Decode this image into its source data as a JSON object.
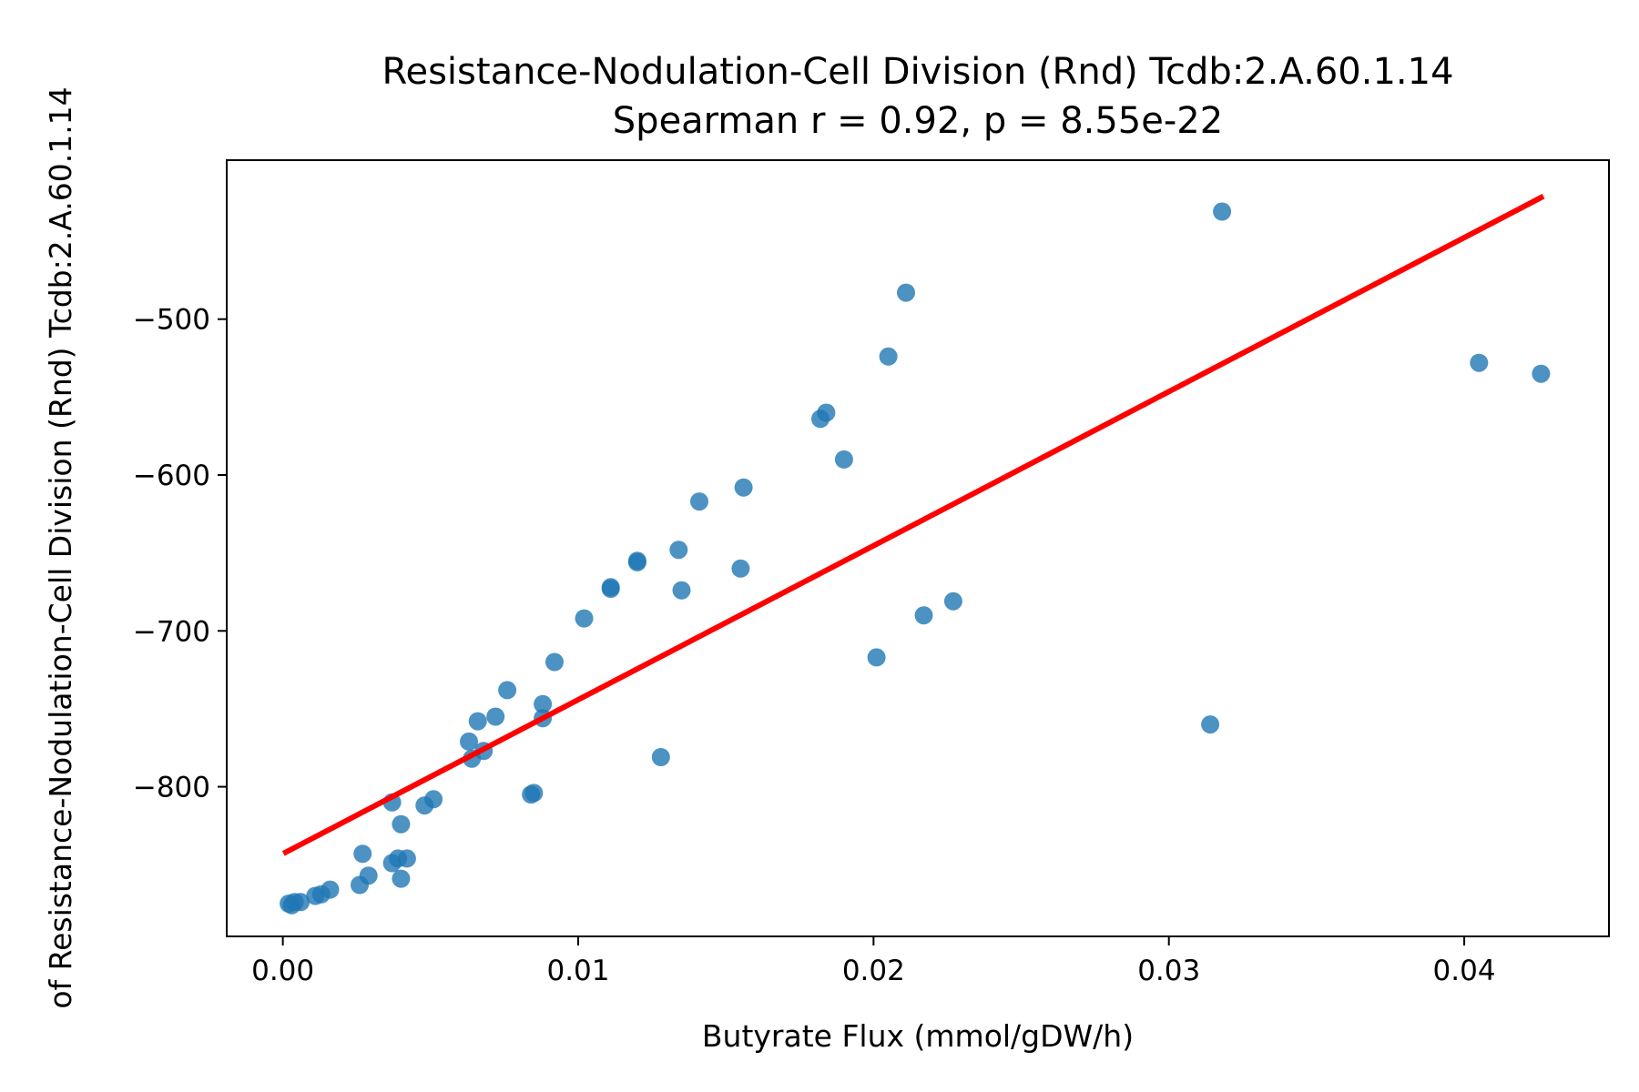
{
  "chart_data": {
    "type": "scatter",
    "title": "Resistance-Nodulation-Cell Division (Rnd) Tcdb:2.A.60.1.14",
    "subtitle": "Spearman r = 0.92, p = 8.55e-22",
    "xlabel": "Butyrate Flux (mmol/gDW/h)",
    "ylabel": "of Resistance-Nodulation-Cell Division (Rnd) Tcdb:2.A.60.1.14",
    "xlim": [
      -0.0019,
      0.0449
    ],
    "ylim": [
      -896,
      -398
    ],
    "xticks": [
      0.0,
      0.01,
      0.02,
      0.03,
      0.04
    ],
    "xtick_labels": [
      "0.00",
      "0.01",
      "0.02",
      "0.03",
      "0.04"
    ],
    "yticks": [
      -500,
      -600,
      -700,
      -800
    ],
    "ytick_labels": [
      "−500",
      "−600",
      "−700",
      "−800"
    ],
    "grid": false,
    "colors": {
      "points": "#1f77b4",
      "fit_line": "#ff0000"
    },
    "fit_line": {
      "x": [
        0.0001,
        0.0426
      ],
      "y": [
        -842,
        -422
      ]
    },
    "points": [
      [
        0.0318,
        -431
      ],
      [
        0.0211,
        -483
      ],
      [
        0.0205,
        -524
      ],
      [
        0.0405,
        -528
      ],
      [
        0.0426,
        -535
      ],
      [
        0.0184,
        -560
      ],
      [
        0.0182,
        -564
      ],
      [
        0.019,
        -590
      ],
      [
        0.0156,
        -608
      ],
      [
        0.0141,
        -617
      ],
      [
        0.0134,
        -648
      ],
      [
        0.012,
        -655
      ],
      [
        0.012,
        -656
      ],
      [
        0.0155,
        -660
      ],
      [
        0.0111,
        -672
      ],
      [
        0.0111,
        -673
      ],
      [
        0.0135,
        -674
      ],
      [
        0.0227,
        -681
      ],
      [
        0.0217,
        -690
      ],
      [
        0.0102,
        -692
      ],
      [
        0.0201,
        -717
      ],
      [
        0.0092,
        -720
      ],
      [
        0.0076,
        -738
      ],
      [
        0.0088,
        -747
      ],
      [
        0.0072,
        -755
      ],
      [
        0.0088,
        -756
      ],
      [
        0.0066,
        -758
      ],
      [
        0.0314,
        -760
      ],
      [
        0.0068,
        -777
      ],
      [
        0.0063,
        -771
      ],
      [
        0.0064,
        -782
      ],
      [
        0.0128,
        -781
      ],
      [
        0.0085,
        -804
      ],
      [
        0.0084,
        -805
      ],
      [
        0.0037,
        -810
      ],
      [
        0.0051,
        -808
      ],
      [
        0.0048,
        -812
      ],
      [
        0.004,
        -824
      ],
      [
        0.0027,
        -843
      ],
      [
        0.0042,
        -846
      ],
      [
        0.0039,
        -846
      ],
      [
        0.0037,
        -849
      ],
      [
        0.0029,
        -857
      ],
      [
        0.004,
        -859
      ],
      [
        0.0026,
        -863
      ],
      [
        0.0016,
        -866
      ],
      [
        0.0013,
        -869
      ],
      [
        0.0011,
        -870
      ],
      [
        0.0006,
        -874
      ],
      [
        0.0004,
        -874
      ],
      [
        0.0003,
        -876
      ],
      [
        0.0002,
        -875
      ]
    ]
  }
}
